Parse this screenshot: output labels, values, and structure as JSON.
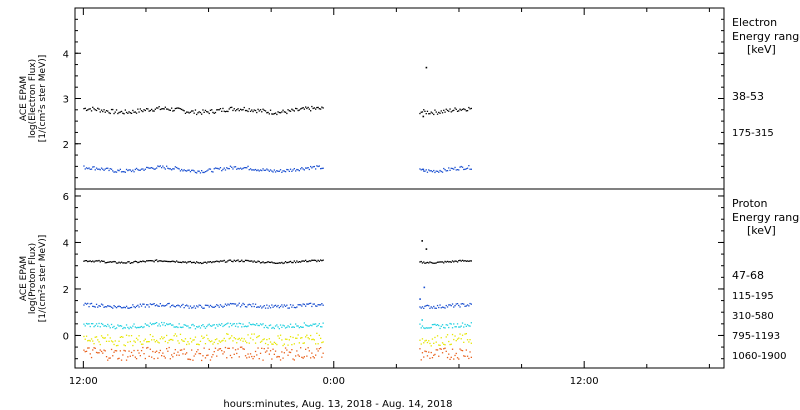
{
  "chart_data": [
    {
      "type": "scatter",
      "ylabel_lines": [
        "ACE EPAM",
        "log(Electron Flux)",
        "[1/(cm²s ster MeV)]"
      ],
      "ylim": [
        1,
        5
      ],
      "yticks": [
        "2",
        "3",
        "4"
      ],
      "legend_title": [
        "Electron",
        "Energy ranges",
        "[keV]"
      ],
      "legend_placement": "right",
      "series": [
        {
          "name": "38-53",
          "color": "#000000",
          "level": 2.75,
          "spread": 0.05,
          "gap_points": [
            {
              "x": 28.25,
              "y": 2.62
            },
            {
              "x": 28.4,
              "y": 3.7
            }
          ]
        },
        {
          "name": "175-315",
          "color": "#1a4fd0",
          "level": 1.45,
          "spread": 0.04,
          "gap_points": [
            {
              "x": 28.25,
              "y": 1.45
            }
          ]
        }
      ]
    },
    {
      "type": "scatter",
      "ylabel_lines": [
        "ACE EPAM",
        "log(Proton Flux)",
        "[1/(cm²s ster MeV)]"
      ],
      "ylim": [
        -1.4,
        6.3
      ],
      "yticks": [
        "0",
        "2",
        "4",
        "6"
      ],
      "legend_title": [
        "Proton",
        "Energy ranges",
        "[keV]"
      ],
      "legend_placement": "right",
      "series": [
        {
          "name": "47-68",
          "color": "#000000",
          "level": 3.2,
          "spread": 0.02,
          "gap_points": [
            {
              "x": 28.2,
              "y": 4.1
            },
            {
              "x": 28.4,
              "y": 3.75
            }
          ]
        },
        {
          "name": "115-195",
          "color": "#1a4fd0",
          "level": 1.3,
          "spread": 0.04,
          "gap_points": [
            {
              "x": 28.3,
              "y": 2.1
            },
            {
              "x": 28.1,
              "y": 1.6
            }
          ]
        },
        {
          "name": "310-580",
          "color": "#22d0e0",
          "level": 0.45,
          "spread": 0.05,
          "gap_points": [
            {
              "x": 28.2,
              "y": 0.7
            }
          ]
        },
        {
          "name": "795-1193",
          "color": "#e6e600",
          "level": -0.15,
          "spread": 0.12,
          "gap_points": []
        },
        {
          "name": "1060-1900",
          "color": "#e8601c",
          "level": -0.75,
          "spread": 0.14,
          "gap_points": []
        }
      ]
    }
  ],
  "x_axis": {
    "ticks": [
      {
        "x": 12,
        "label": "12:00"
      },
      {
        "x": 24,
        "label": "0:00"
      },
      {
        "x": 36,
        "label": "12:00"
      }
    ],
    "xlim": [
      11.6,
      42.7
    ],
    "xlabel": "hours:minutes, Aug. 13, 2018 - Aug. 14, 2018",
    "data_segments": [
      [
        12,
        23.5
      ],
      [
        28.1,
        30.6
      ]
    ]
  },
  "colors": {
    "axis": "#000000",
    "background": "#ffffff"
  }
}
